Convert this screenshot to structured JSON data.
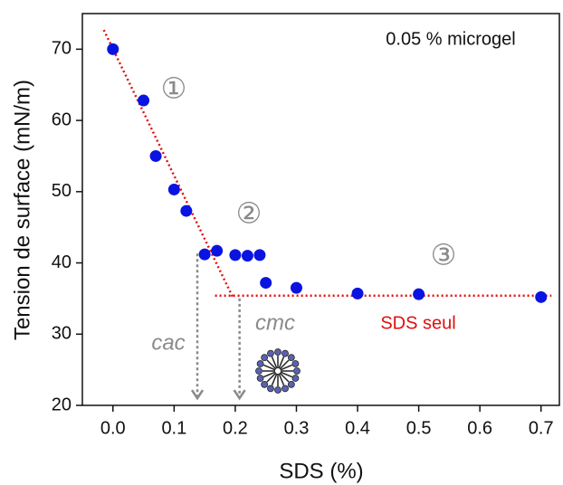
{
  "chart_data": {
    "type": "scatter",
    "x_label": "SDS (%)",
    "y_label": "Tension de surface (mN/m)",
    "series": [
      {
        "name": null,
        "color": "#0a14e0",
        "x": [
          0,
          0.05,
          0.07,
          0.1,
          0.12,
          0.15,
          0.17,
          0.2,
          0.22,
          0.24,
          0.25,
          0.3,
          0.4,
          0.5,
          0.7
        ],
        "values": [
          70,
          62.8,
          55,
          50.3,
          47.3,
          41.2,
          41.7,
          41.1,
          41,
          41.1,
          37.2,
          36.5,
          35.7,
          35.6,
          35.2
        ]
      }
    ],
    "xlim": [
      -0.05,
      0.73
    ],
    "ylim": [
      20,
      75
    ],
    "xticks": [
      {
        "value": 0,
        "label": "0.0"
      },
      0.1,
      0.2,
      0.3,
      0.4,
      0.5,
      0.6,
      0.7
    ],
    "yticks": [
      20,
      30,
      40,
      50,
      60,
      70
    ],
    "fit_lines": [
      {
        "color": "#e01010",
        "x": [
          -0.015,
          0.197
        ],
        "values": [
          72.7,
          35
        ]
      },
      {
        "color": "#e01010",
        "x": [
          0.167,
          0.717
        ],
        "values": [
          35.4,
          35.4
        ]
      }
    ],
    "arrows": [
      {
        "label": "cac",
        "color": "#8a8a8a",
        "x": [
          0.138,
          0.138
        ],
        "values": [
          41.3,
          21
        ]
      },
      {
        "label": "cmc",
        "color": "#8a8a8a",
        "x": [
          0.207,
          0.207
        ],
        "values": [
          35,
          21
        ]
      }
    ],
    "annotations": [
      "0.05 % microgel",
      "SDS seul",
      "①",
      "②",
      "③"
    ]
  }
}
